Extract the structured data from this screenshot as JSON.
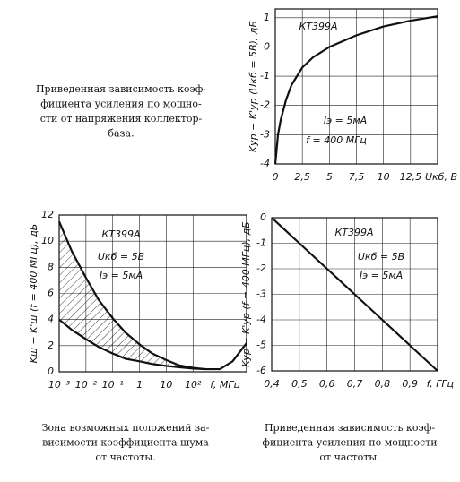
{
  "chart_data": [
    {
      "type": "line",
      "ylabel": "Kур − K'ур (Uкб = 5В), дБ",
      "xlabel": "Uкб, В",
      "annotations": [
        "КТ399А",
        "Iэ = 5мА",
        "f = 400 МГц"
      ],
      "caption": [
        "Приведенная зависимость коэф-",
        "фициента усиления по мощно-",
        "сти от напряжения коллектор-",
        "база."
      ],
      "x": [
        0,
        0.25,
        0.5,
        1,
        1.5,
        2.5,
        3.5,
        5,
        7.5,
        10,
        12.5,
        15
      ],
      "values": [
        -4,
        -3,
        -2.5,
        -1.8,
        -1.3,
        -0.7,
        -0.35,
        0,
        0.4,
        0.7,
        0.9,
        1.05
      ],
      "color": "#111111",
      "xlim": [
        0,
        15
      ],
      "ylim": [
        -4,
        1.3
      ],
      "xticks": [
        0,
        {
          "value": 2.5,
          "label": "2,5"
        },
        5,
        {
          "value": 7.5,
          "label": "7,5"
        },
        10,
        {
          "value": 12.5,
          "label": "12,5"
        }
      ],
      "yticks": [
        1,
        0,
        -1,
        -2,
        -3,
        -4
      ],
      "grid": true
    },
    {
      "type": "line",
      "ylabel": "Kш − K'ш (f = 400 МГц), дБ",
      "xlabel": "f, МГц",
      "annotations": [
        "КТ399А",
        "Uкб = 5В",
        "Iэ = 5мА"
      ],
      "caption": [
        "Зона возможных положений за-",
        "висимости коэффициента шума",
        "от частоты."
      ],
      "xlog": true,
      "hatched": true,
      "x": [
        0.001,
        0.003,
        0.01,
        0.03,
        0.1,
        0.3,
        1,
        3,
        10,
        30,
        100,
        300,
        1000,
        3000,
        10000
      ],
      "series": [
        {
          "color": "#111111",
          "values": [
            11.5,
            9.2,
            7.2,
            5.5,
            4.1,
            3,
            2.1,
            1.4,
            0.9,
            0.5,
            0.3,
            0.2,
            0.2,
            0.8,
            2.2
          ]
        },
        {
          "color": "#111111",
          "values": [
            4,
            3.2,
            2.5,
            1.9,
            1.4,
            1,
            0.8,
            0.6,
            0.45,
            0.35,
            0.25,
            0.2,
            null,
            null,
            null
          ]
        }
      ],
      "xlim": [
        0.001,
        10000
      ],
      "ylim": [
        0,
        12
      ],
      "xticks": [
        {
          "value": 0.001,
          "label": "10⁻³"
        },
        {
          "value": 0.01,
          "label": "10⁻²"
        },
        {
          "value": 0.1,
          "label": "10⁻¹"
        },
        1,
        10,
        {
          "value": 100,
          "label": "10²"
        }
      ],
      "yticks": [
        0,
        2,
        4,
        6,
        8,
        10,
        12
      ],
      "grid": true
    },
    {
      "type": "line",
      "ylabel": "Kур − K'ур (f = 400 МГц), дБ",
      "xlabel": "f, ГГц",
      "annotations": [
        "КТ399А",
        "Uкб = 5В",
        "Iэ = 5мА"
      ],
      "caption": [
        "Приведенная зависимость коэф-",
        "фициента усиления по мощности",
        "от частоты."
      ],
      "x": [
        0.4,
        0.5,
        0.6,
        0.7,
        0.8,
        0.9,
        1.0
      ],
      "values": [
        0,
        -1,
        -2,
        -3,
        -4,
        -5,
        -6
      ],
      "color": "#111111",
      "xlim": [
        0.4,
        1.0
      ],
      "ylim": [
        -6,
        0
      ],
      "xticks": [
        {
          "value": 0.4,
          "label": "0,4"
        },
        {
          "value": 0.5,
          "label": "0,5"
        },
        {
          "value": 0.6,
          "label": "0,6"
        },
        {
          "value": 0.7,
          "label": "0,7"
        },
        {
          "value": 0.8,
          "label": "0,8"
        },
        {
          "value": 0.9,
          "label": "0,9"
        }
      ],
      "yticks": [
        0,
        -1,
        -2,
        -3,
        -4,
        -5,
        -6
      ],
      "grid": true
    }
  ]
}
